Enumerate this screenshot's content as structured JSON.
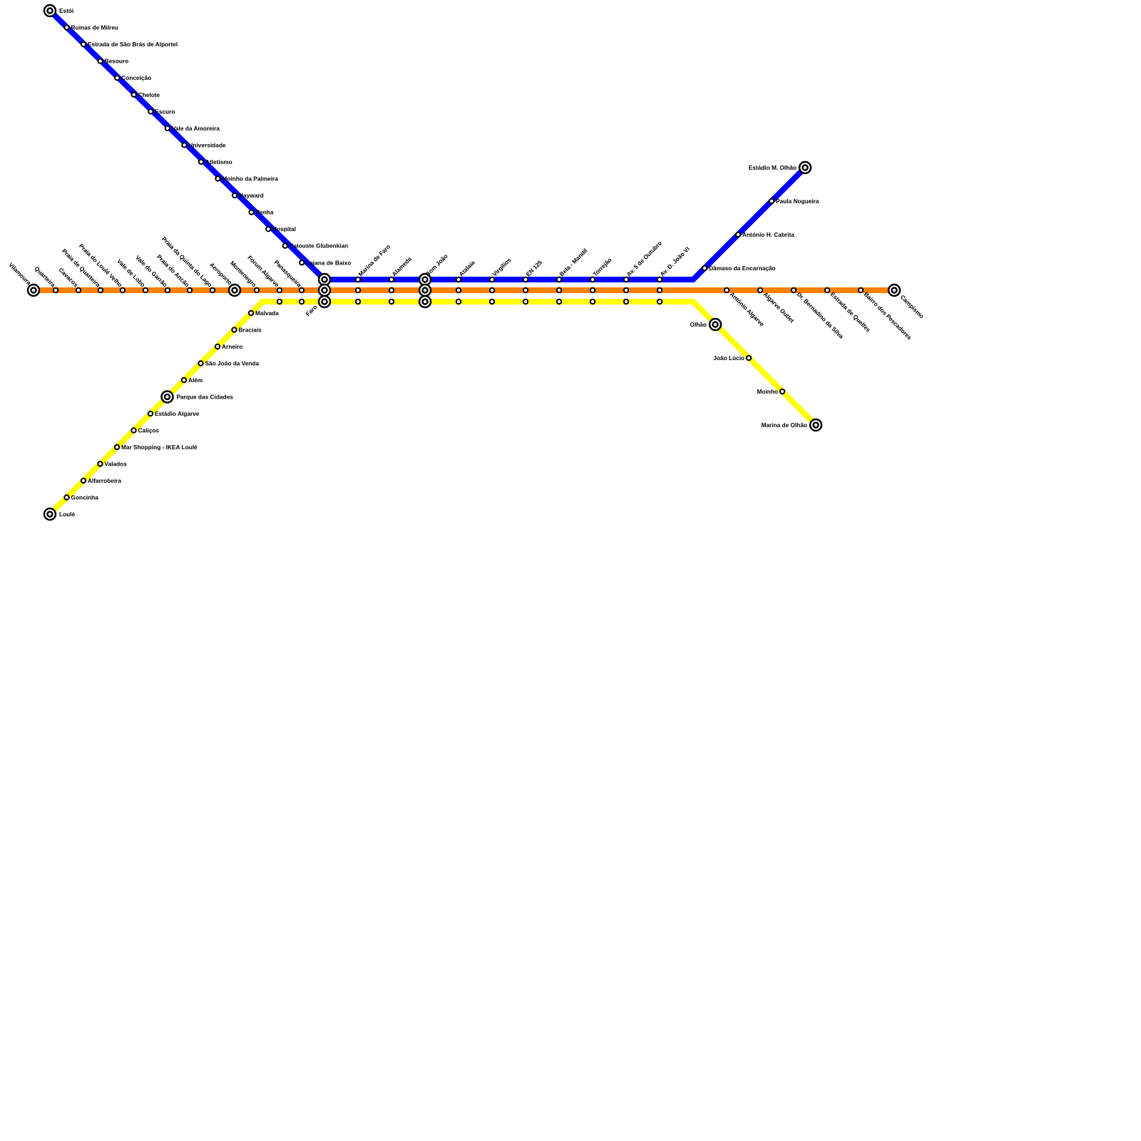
{
  "lines": [
    {
      "id": "blue",
      "color": "#0000ff",
      "stations": [
        "Estói",
        "Ruínas de Milreu",
        "Estrada de São Brás de Alportel",
        "Besouro",
        "Conceição",
        "Chelote",
        "Escuro",
        "Vale da Amoreira",
        "Universidade",
        "Atletismo",
        "Moinho da Palmeira",
        "Hayward",
        "Penha",
        "Hospital",
        "Calouste Glubenkian",
        "Lejana de Baixo",
        "Faro",
        "Marina de Faro",
        "Alameda",
        "Bom João",
        "Atalaia",
        "Virgílios",
        "EN 125",
        "Bela - Mandil",
        "Torrejão",
        "Av. 5 de Outubro",
        "Av. D. João VI",
        "Dâmaso da Encarnação",
        "António H. Cabrita",
        "Paula Nogueira",
        "Estádio M. Olhão"
      ]
    },
    {
      "id": "orange",
      "color": "#ff7f00",
      "stations": [
        "Vilamoura",
        "Quarteira",
        "Cavacos",
        "Praia de Quarteira",
        "Praia do Loulé Velho",
        "Vale de Lobo",
        "Vale do Garrão",
        "Praia do Ancão",
        "Praia da Quinta do Lago",
        "Aeroporto",
        "Montenegro",
        "Fórum Algarve",
        "Panasqueira",
        "Faro",
        "Marina de Faro",
        "Alameda",
        "Bom João",
        "Atalaia",
        "Virgílios",
        "EN 125",
        "Bela - Mandil",
        "Torrejão",
        "Av. 5 de Outubro",
        "Av. D. João VI",
        "António Algarve",
        "Algarve Outlet",
        "Dr. Bernadino da Silva",
        "Estrada de Quelfes",
        "Bairro dos Pescadores",
        "Campismo"
      ]
    },
    {
      "id": "yellow",
      "color": "#ffff00",
      "stations": [
        "Loulé",
        "Goncinha",
        "Alfarrobeira",
        "Valados",
        "Mar Shopping  - IKEA Loulé",
        "Caliços",
        "Estádio Algarve",
        "Parque das Cidades",
        "Além",
        "São João da Venda",
        "Arneiro",
        "Braciais",
        "Malvada",
        "Fórum Algarve",
        "Panasqueira",
        "Faro",
        "Marina de Faro",
        "Alameda",
        "Bom João",
        "Atalaia",
        "Virgílios",
        "EN 125",
        "Bela - Mandil",
        "Torrejão",
        "Av. 5 de Outubro",
        "Av. D. João VI",
        "Olhão",
        "João Lúcio",
        "Moinho",
        "Marina de Olhão"
      ]
    }
  ],
  "interchanges": [
    "Estói",
    "Faro",
    "Bom João",
    "Estádio M. Olhão",
    "Vilamoura",
    "Aeroporto",
    "Campismo",
    "Loulé",
    "Parque das Cidades",
    "Olhão",
    "Marina de Olhão"
  ]
}
